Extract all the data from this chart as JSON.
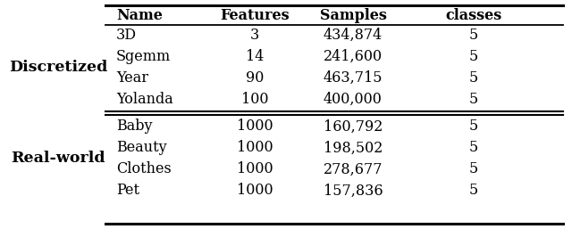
{
  "col_headers": [
    "Name",
    "Features",
    "Samples",
    "classes"
  ],
  "groups": [
    {
      "label": "Discretized",
      "rows": [
        [
          "3D",
          "3",
          "434,874",
          "5"
        ],
        [
          "Sgemm",
          "14",
          "241,600",
          "5"
        ],
        [
          "Year",
          "90",
          "463,715",
          "5"
        ],
        [
          "Yolanda",
          "100",
          "400,000",
          "5"
        ]
      ]
    },
    {
      "label": "Real-world",
      "rows": [
        [
          "Baby",
          "1000",
          "160,792",
          "5"
        ],
        [
          "Beauty",
          "1000",
          "198,502",
          "5"
        ],
        [
          "Clothes",
          "1000",
          "278,677",
          "5"
        ],
        [
          "Pet",
          "1000",
          "157,836",
          "5"
        ]
      ]
    }
  ],
  "background_color": "#ffffff",
  "font_size": 11.5,
  "label_font_size": 12.5
}
